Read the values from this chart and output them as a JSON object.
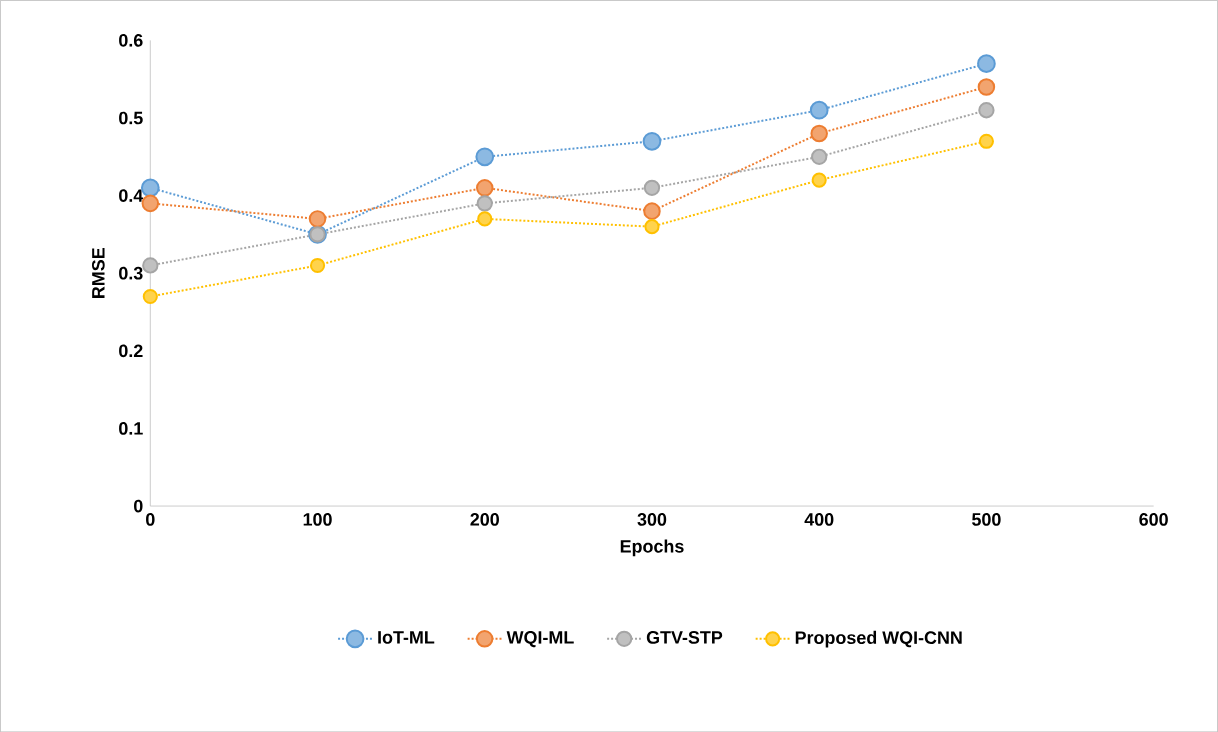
{
  "chart_data": {
    "type": "line",
    "xlabel": "Epochs",
    "ylabel": "RMSE",
    "x": [
      0,
      100,
      200,
      300,
      400,
      500
    ],
    "series": [
      {
        "name": "IoT-ML",
        "color": "#5b9bd5",
        "values": [
          0.41,
          0.35,
          0.45,
          0.47,
          0.51,
          0.57
        ]
      },
      {
        "name": "WQI-ML",
        "color": "#ed7d31",
        "values": [
          0.39,
          0.37,
          0.41,
          0.38,
          0.48,
          0.54
        ]
      },
      {
        "name": "GTV-STP",
        "color": "#a5a5a5",
        "values": [
          0.31,
          0.35,
          0.39,
          0.41,
          0.45,
          0.51
        ]
      },
      {
        "name": "Proposed WQI-CNN",
        "color": "#ffc000",
        "values": [
          0.27,
          0.31,
          0.37,
          0.36,
          0.42,
          0.47
        ]
      }
    ],
    "xlim": [
      0,
      600
    ],
    "xticks": [
      0,
      100,
      200,
      300,
      400,
      500,
      600
    ],
    "ylim": [
      0,
      0.6
    ],
    "yticks": [
      0,
      0.1,
      0.2,
      0.3,
      0.4,
      0.5,
      0.6
    ],
    "grid": false,
    "legend": "bottom",
    "marker": "circle",
    "line_style": "dotted"
  }
}
